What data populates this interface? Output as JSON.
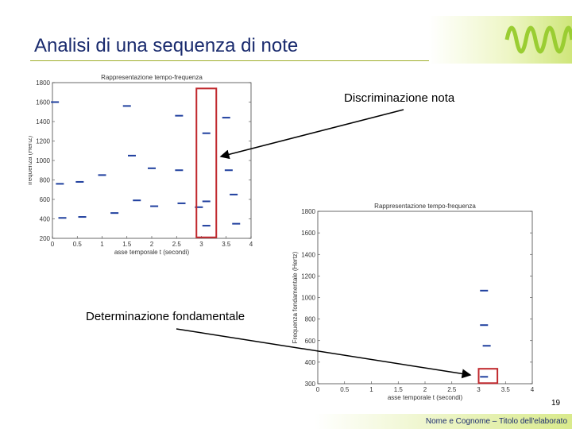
{
  "slide": {
    "title": "Analisi di una sequenza di note",
    "label_top": "Discriminazione nota",
    "label_bottom": "Determinazione fondamentale",
    "page_number": "19",
    "footer": "Nome e Cognome – Titolo dell'elaborato"
  },
  "colors": {
    "title": "#1a2b6e",
    "accent": "#9fae2a",
    "highlight": "#c0282d",
    "banner_wave": "#9acd32"
  },
  "chart_data": [
    {
      "type": "scatter",
      "title": "Rappresentazione tempo-frequenza",
      "xlabel": "asse temporale t (secondi)",
      "ylabel": "frequenza (Hertz)",
      "xlim": [
        0,
        4
      ],
      "ylim": [
        200,
        1800
      ],
      "xticks": [
        "0",
        "0.5",
        "1",
        "1.5",
        "2",
        "2.5",
        "3",
        "3.5",
        "4"
      ],
      "yticks": [
        "200",
        "400",
        "600",
        "800",
        "1000",
        "1200",
        "1400",
        "1600",
        "1800"
      ],
      "points": [
        [
          0.05,
          1600
        ],
        [
          1.5,
          1560
        ],
        [
          2.55,
          1460
        ],
        [
          3.5,
          1440
        ],
        [
          3.1,
          1280
        ],
        [
          1.6,
          1050
        ],
        [
          2.55,
          900
        ],
        [
          1.0,
          850
        ],
        [
          2.0,
          920
        ],
        [
          3.55,
          900
        ],
        [
          0.55,
          780
        ],
        [
          0.15,
          760
        ],
        [
          3.65,
          650
        ],
        [
          3.1,
          580
        ],
        [
          1.7,
          590
        ],
        [
          2.6,
          560
        ],
        [
          2.05,
          530
        ],
        [
          2.95,
          520
        ],
        [
          1.25,
          460
        ],
        [
          0.6,
          420
        ],
        [
          0.2,
          410
        ],
        [
          3.7,
          350
        ],
        [
          3.1,
          330
        ]
      ]
    },
    {
      "type": "scatter",
      "title": "Rappresentazione tempo-frequenza",
      "xlabel": "asse temporale t (secondi)",
      "ylabel": "Frequenza fondamentale (Hertz)",
      "xlim": [
        0,
        4
      ],
      "ylim": [
        300,
        1800
      ],
      "xticks": [
        "0",
        "0.5",
        "1",
        "1.5",
        "2",
        "2.5",
        "3",
        "3.5",
        "4"
      ],
      "yticks": [
        "300",
        "400",
        "600",
        "800",
        "1000",
        "1200",
        "1400",
        "1600",
        "1800"
      ],
      "points": [
        [
          3.1,
          1110
        ],
        [
          3.1,
          810
        ],
        [
          3.15,
          630
        ],
        [
          3.1,
          360
        ]
      ]
    }
  ]
}
